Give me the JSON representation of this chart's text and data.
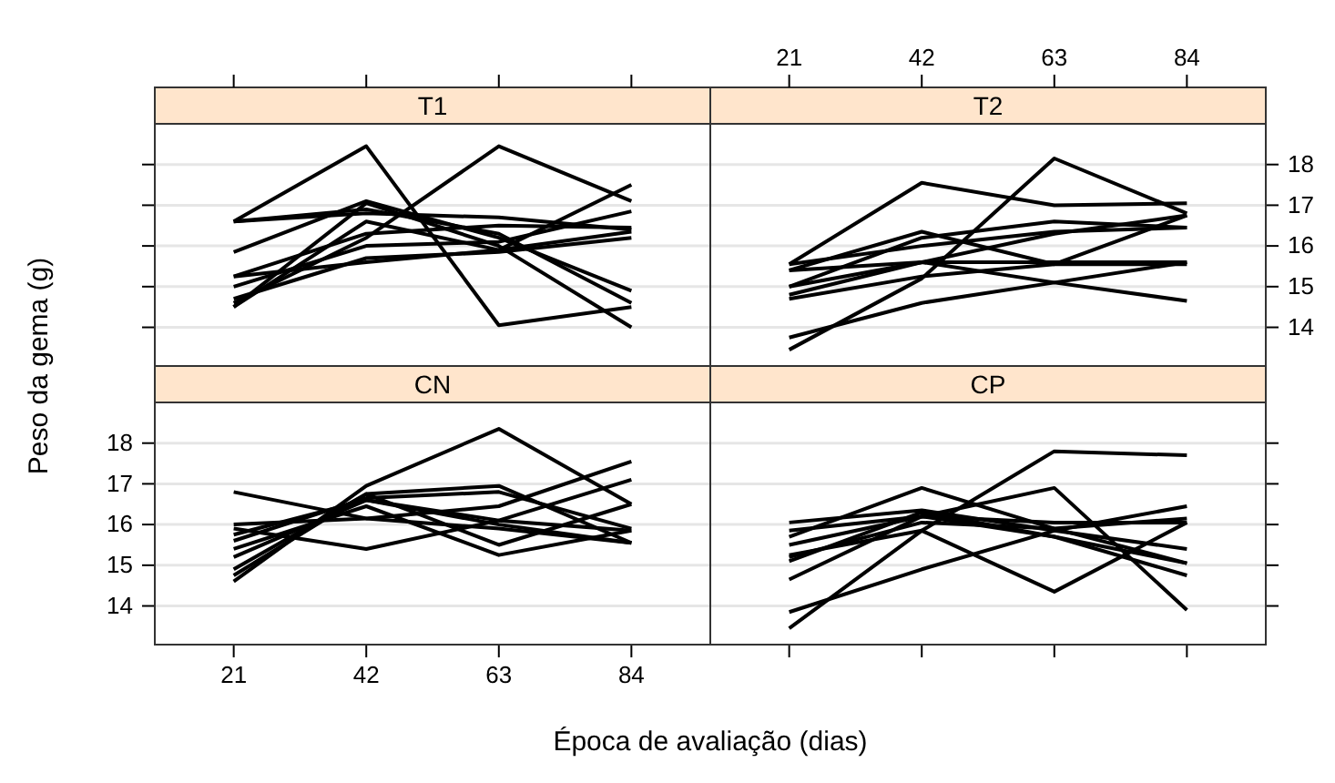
{
  "chart_data": [
    {
      "type": "line",
      "title": "T1",
      "x": [
        21,
        42,
        63,
        84
      ],
      "xlim": [
        8.5,
        96.5
      ],
      "ylim": [
        13.05,
        19.0
      ],
      "xticks": [
        21,
        42,
        63,
        84
      ],
      "yticks": [
        14,
        15,
        16,
        17,
        18
      ],
      "grid": "y",
      "tick_labels": false,
      "series": [
        {
          "color": "#000000",
          "values": [
            16.6,
            18.45,
            14.05,
            14.5
          ]
        },
        {
          "color": "#000000",
          "values": [
            14.6,
            16.2,
            18.45,
            17.1
          ]
        },
        {
          "color": "#000000",
          "values": [
            15.25,
            15.6,
            15.9,
            17.5
          ]
        },
        {
          "color": "#000000",
          "values": [
            16.6,
            16.8,
            16.7,
            16.4
          ]
        },
        {
          "color": "#000000",
          "values": [
            16.6,
            16.9,
            16.3,
            14.6
          ]
        },
        {
          "color": "#000000",
          "values": [
            15.85,
            17.1,
            16.2,
            14.9
          ]
        },
        {
          "color": "#000000",
          "values": [
            14.5,
            17.05,
            16.0,
            14.0
          ]
        },
        {
          "color": "#000000",
          "values": [
            15.0,
            16.0,
            16.1,
            16.85
          ]
        },
        {
          "color": "#000000",
          "values": [
            14.7,
            15.7,
            15.85,
            16.2
          ]
        },
        {
          "color": "#000000",
          "values": [
            15.25,
            16.3,
            16.5,
            16.45
          ]
        },
        {
          "color": "#000000",
          "values": [
            14.5,
            16.6,
            15.9,
            16.35
          ]
        }
      ]
    },
    {
      "type": "line",
      "title": "T2",
      "x": [
        21,
        42,
        63,
        84
      ],
      "xlim": [
        8.5,
        96.5
      ],
      "ylim": [
        13.05,
        19.0
      ],
      "xticks": [
        21,
        42,
        63,
        84
      ],
      "yticks": [
        14,
        15,
        16,
        17,
        18
      ],
      "grid": "y",
      "series": [
        {
          "color": "#000000",
          "values": [
            15.55,
            17.55,
            17.0,
            17.05
          ]
        },
        {
          "color": "#000000",
          "values": [
            13.45,
            15.2,
            18.15,
            16.8
          ]
        },
        {
          "color": "#000000",
          "values": [
            15.4,
            16.35,
            15.55,
            16.75
          ]
        },
        {
          "color": "#000000",
          "values": [
            15.0,
            16.2,
            16.6,
            16.45
          ]
        },
        {
          "color": "#000000",
          "values": [
            13.75,
            14.6,
            15.1,
            15.6
          ]
        },
        {
          "color": "#000000",
          "values": [
            14.8,
            15.6,
            16.3,
            16.75
          ]
        },
        {
          "color": "#000000",
          "values": [
            15.4,
            15.6,
            15.1,
            14.65
          ]
        },
        {
          "color": "#000000",
          "values": [
            14.7,
            15.25,
            15.55,
            15.55
          ]
        },
        {
          "color": "#000000",
          "values": [
            15.0,
            15.6,
            15.6,
            15.6
          ]
        },
        {
          "color": "#000000",
          "values": [
            15.55,
            16.0,
            16.35,
            16.45
          ]
        }
      ]
    },
    {
      "type": "line",
      "title": "CN",
      "xlabel": "Época de avaliação (dias)",
      "ylabel": "Peso da gema (g)",
      "x": [
        21,
        42,
        63,
        84
      ],
      "xlim": [
        8.5,
        96.5
      ],
      "ylim": [
        13.05,
        19.0
      ],
      "xticks": [
        21,
        42,
        63,
        84
      ],
      "yticks": [
        14,
        15,
        16,
        17,
        18
      ],
      "grid": "y",
      "series": [
        {
          "color": "#000000",
          "values": [
            16.8,
            16.15,
            15.9,
            15.55
          ]
        },
        {
          "color": "#000000",
          "values": [
            15.9,
            15.4,
            16.1,
            17.1
          ]
        },
        {
          "color": "#000000",
          "values": [
            14.6,
            16.95,
            18.35,
            16.5
          ]
        },
        {
          "color": "#000000",
          "values": [
            14.75,
            16.75,
            16.95,
            15.55
          ]
        },
        {
          "color": "#000000",
          "values": [
            15.6,
            16.65,
            16.8,
            15.9
          ]
        },
        {
          "color": "#000000",
          "values": [
            15.4,
            16.45,
            15.25,
            15.85
          ]
        },
        {
          "color": "#000000",
          "values": [
            14.9,
            16.75,
            15.5,
            16.5
          ]
        },
        {
          "color": "#000000",
          "values": [
            15.75,
            16.6,
            16.1,
            15.85
          ]
        },
        {
          "color": "#000000",
          "values": [
            16.0,
            16.15,
            16.45,
            17.55
          ]
        },
        {
          "color": "#000000",
          "values": [
            15.2,
            16.6,
            16.0,
            15.55
          ]
        }
      ]
    },
    {
      "type": "line",
      "title": "CP",
      "x": [
        21,
        42,
        63,
        84
      ],
      "xlim": [
        8.5,
        96.5
      ],
      "ylim": [
        13.05,
        19.0
      ],
      "xticks": [
        21,
        42,
        63,
        84
      ],
      "yticks": [
        14,
        15,
        16,
        17,
        18
      ],
      "grid": "y",
      "tick_labels": false,
      "series": [
        {
          "color": "#000000",
          "values": [
            13.45,
            15.85,
            17.8,
            17.7
          ]
        },
        {
          "color": "#000000",
          "values": [
            13.85,
            14.9,
            15.85,
            16.45
          ]
        },
        {
          "color": "#000000",
          "values": [
            15.7,
            16.9,
            15.9,
            15.05
          ]
        },
        {
          "color": "#000000",
          "values": [
            15.25,
            15.85,
            14.35,
            16.05
          ]
        },
        {
          "color": "#000000",
          "values": [
            15.5,
            16.2,
            16.9,
            13.9
          ]
        },
        {
          "color": "#000000",
          "values": [
            16.05,
            16.35,
            15.85,
            15.4
          ]
        },
        {
          "color": "#000000",
          "values": [
            15.85,
            16.2,
            15.7,
            15.05
          ]
        },
        {
          "color": "#000000",
          "values": [
            15.2,
            16.05,
            15.9,
            16.15
          ]
        },
        {
          "color": "#000000",
          "values": [
            15.1,
            16.3,
            15.7,
            14.75
          ]
        },
        {
          "color": "#000000",
          "values": [
            14.65,
            16.2,
            16.05,
            16.05
          ]
        }
      ]
    }
  ]
}
